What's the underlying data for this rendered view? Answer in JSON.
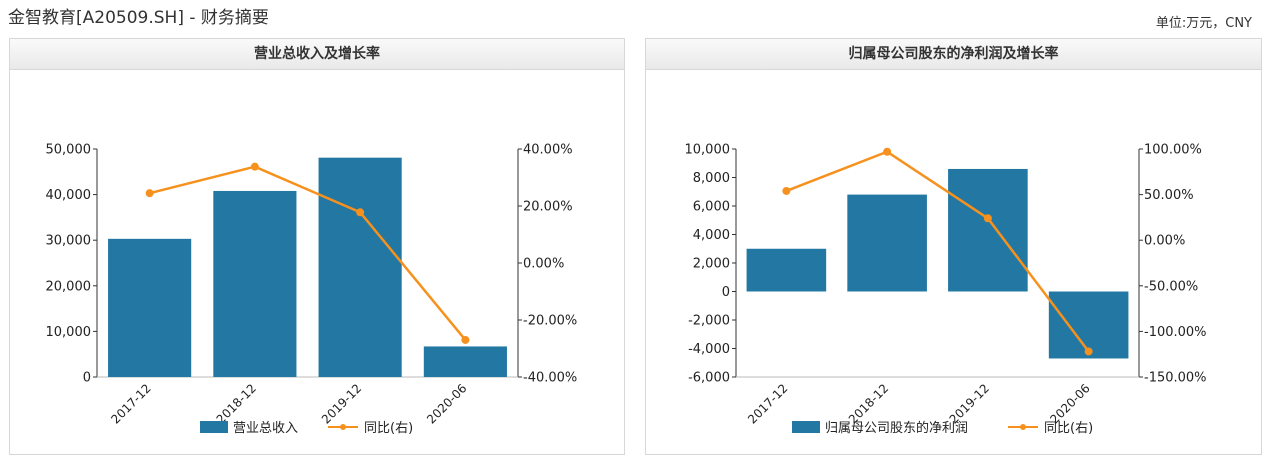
{
  "header": {
    "title": "金智教育[A20509.SH] - 财务摘要",
    "unit": "单位:万元，CNY"
  },
  "colors": {
    "bar": "#2378a3",
    "line": "#f6911d",
    "axis": "#333333"
  },
  "chart_data": [
    {
      "type": "bar",
      "title": "营业总收入及增长率",
      "categories": [
        "2017-12",
        "2018-12",
        "2019-12",
        "2020-06"
      ],
      "series": [
        {
          "name": "营业总收入",
          "kind": "bar",
          "axis": "left",
          "values": [
            30300,
            40800,
            48100,
            6700
          ]
        },
        {
          "name": "同比(右)",
          "kind": "line",
          "axis": "right",
          "values": [
            24.5,
            33.8,
            17.8,
            -27.0
          ]
        }
      ],
      "yleft": {
        "min": 0,
        "max": 50000,
        "ticks": [
          "0",
          "10,000",
          "20,000",
          "30,000",
          "40,000",
          "50,000"
        ]
      },
      "yright": {
        "min": -40,
        "max": 40,
        "ticks": [
          "-40.00%",
          "-20.00%",
          "0.00%",
          "20.00%",
          "40.00%"
        ]
      },
      "legend": "bottom"
    },
    {
      "type": "bar",
      "title": "归属母公司股东的净利润及增长率",
      "categories": [
        "2017-12",
        "2018-12",
        "2019-12",
        "2020-06"
      ],
      "series": [
        {
          "name": "归属母公司股东的净利润",
          "kind": "bar",
          "axis": "left",
          "values": [
            3000,
            6800,
            8600,
            -4700
          ]
        },
        {
          "name": "同比(右)",
          "kind": "line",
          "axis": "right",
          "values": [
            54,
            97,
            24,
            -122
          ]
        }
      ],
      "yleft": {
        "min": -6000,
        "max": 10000,
        "ticks": [
          "-6,000",
          "-4,000",
          "-2,000",
          "0",
          "2,000",
          "4,000",
          "6,000",
          "8,000",
          "10,000"
        ]
      },
      "yright": {
        "min": -150,
        "max": 100,
        "ticks": [
          "-150.00%",
          "-100.00%",
          "-50.00%",
          "0.00%",
          "50.00%",
          "100.00%"
        ]
      },
      "legend": "bottom"
    }
  ]
}
